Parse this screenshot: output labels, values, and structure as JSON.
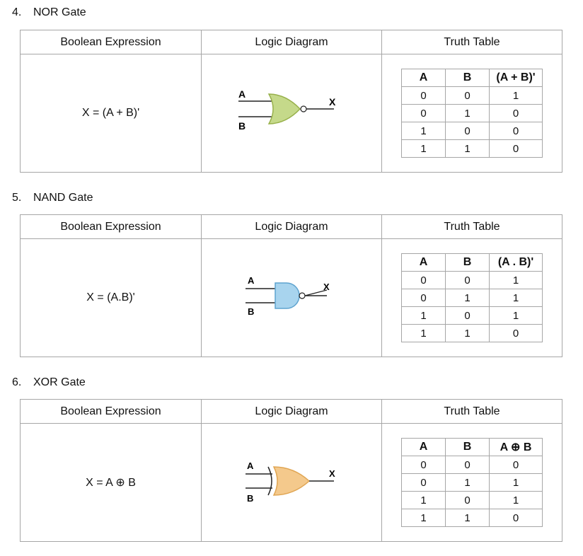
{
  "headers": {
    "expression": "Boolean Expression",
    "diagram": "Logic Diagram",
    "truth": "Truth Table"
  },
  "gates": [
    {
      "number": "4.",
      "name": "NOR Gate",
      "expression": "X = (A + B)'",
      "diagram": {
        "label_a": "A",
        "label_b": "B",
        "label_x": "X",
        "fill": "#c5d98a",
        "stroke": "#97b04a",
        "shape": "nor-gate-icon"
      },
      "truth_table": {
        "columns": [
          "A",
          "B",
          "(A + B)'"
        ],
        "rows": [
          [
            "0",
            "0",
            "1"
          ],
          [
            "0",
            "1",
            "0"
          ],
          [
            "1",
            "0",
            "0"
          ],
          [
            "1",
            "1",
            "0"
          ]
        ]
      }
    },
    {
      "number": "5.",
      "name": "NAND Gate",
      "expression": "X = (A.B)'",
      "diagram": {
        "label_a": "A",
        "label_b": "B",
        "label_x": "X",
        "fill": "#a8d4ee",
        "stroke": "#5ea3cf",
        "shape": "nand-gate-icon"
      },
      "truth_table": {
        "columns": [
          "A",
          "B",
          "(A . B)'"
        ],
        "rows": [
          [
            "0",
            "0",
            "1"
          ],
          [
            "0",
            "1",
            "1"
          ],
          [
            "1",
            "0",
            "1"
          ],
          [
            "1",
            "1",
            "0"
          ]
        ]
      }
    },
    {
      "number": "6.",
      "name": "XOR Gate",
      "expression": "X = A ⊕ B",
      "diagram": {
        "label_a": "A",
        "label_b": "B",
        "label_x": "X",
        "fill": "#f4c98c",
        "stroke": "#e0a552",
        "shape": "xor-gate-icon"
      },
      "truth_table": {
        "columns": [
          "A",
          "B",
          "A ⊕ B"
        ],
        "rows": [
          [
            "0",
            "0",
            "0"
          ],
          [
            "0",
            "1",
            "1"
          ],
          [
            "1",
            "0",
            "1"
          ],
          [
            "1",
            "1",
            "0"
          ]
        ]
      }
    }
  ]
}
